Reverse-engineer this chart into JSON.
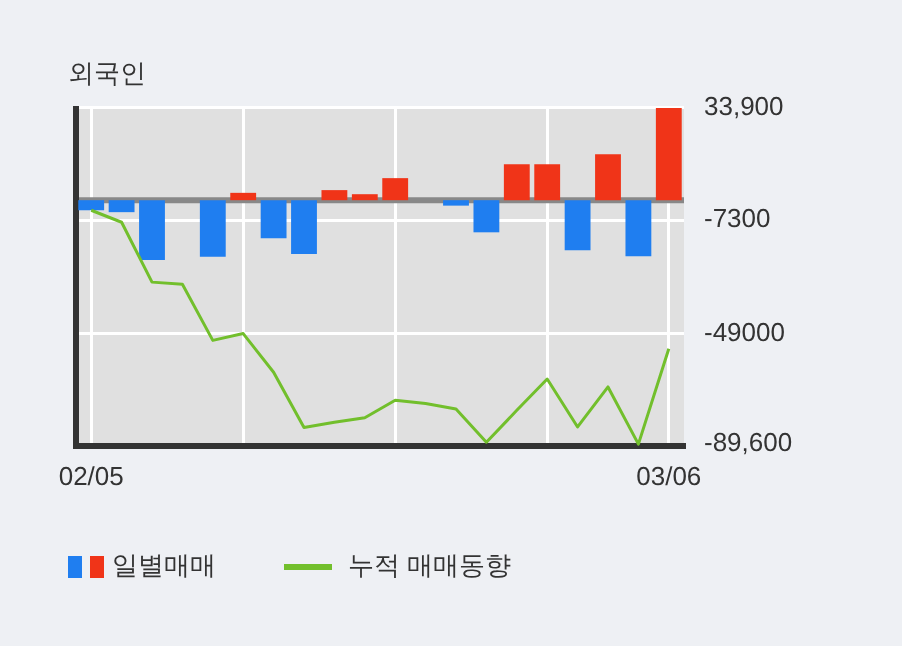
{
  "chart_data": {
    "type": "bar",
    "title": "외국인",
    "categories": [
      "02/05",
      null,
      null,
      null,
      null,
      null,
      null,
      null,
      null,
      null,
      null,
      null,
      null,
      null,
      null,
      null,
      null,
      null,
      null,
      "03/06"
    ],
    "series": [
      {
        "name": "일별매매",
        "colors": [
          "#1f7ef0",
          "#1f7ef0",
          "#1f7ef0",
          "#1f7ef0",
          "#1f7ef0",
          "#f03418",
          "#1f7ef0",
          "#1f7ef0",
          "#f03418",
          "#f03418",
          "#f03418",
          "#1f7ef0",
          "#1f7ef0",
          "#1f7ef0",
          "#f03418",
          "#f03418",
          "#1f7ef0",
          "#f03418",
          "#1f7ef0",
          "#f03418"
        ],
        "values": [
          -3700,
          -4400,
          -22000,
          0,
          -20800,
          2700,
          -14000,
          -19800,
          3700,
          2200,
          8100,
          0,
          -2000,
          -11800,
          13200,
          13200,
          -18400,
          16900,
          -20600,
          33900
        ]
      },
      {
        "name": "누적 매매동향",
        "type": "line",
        "color": "#72bf2c",
        "values": [
          -3700,
          -8100,
          -30100,
          -30900,
          -51500,
          -49000,
          -63200,
          -83500,
          -81600,
          -79900,
          -73500,
          -74700,
          -76700,
          -88900,
          -77200,
          -65700,
          -83300,
          -68600,
          -89600,
          -54600
        ]
      }
    ],
    "ylim": [
      -90300,
      34600
    ],
    "yticks": [
      {
        "value": 33900,
        "label": "33,900"
      },
      {
        "value": -7300,
        "label": "-7300"
      },
      {
        "value": -49000,
        "label": "-49000"
      },
      {
        "value": -89600,
        "label": "-89,600"
      }
    ],
    "ref_lines": [
      {
        "axis": "y",
        "value": 0,
        "color": "#888888"
      }
    ],
    "grid": true,
    "legend": "bottom",
    "marker": "none",
    "line_style": "solid"
  }
}
